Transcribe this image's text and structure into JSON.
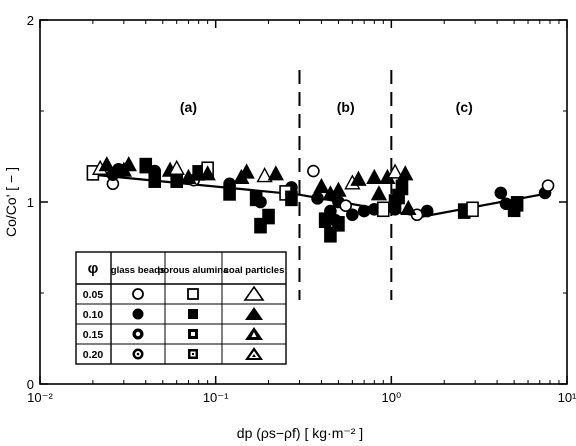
{
  "chart_data": {
    "type": "scatter",
    "xscale": "log",
    "xlim": [
      0.01,
      10
    ],
    "ylim": [
      0,
      2
    ],
    "xlabel": "dp (ρs−ρf)   [ kg·m⁻² ]",
    "ylabel": "Co/Co'  [ − ]",
    "xticks": [
      {
        "value": 0.01,
        "label": "10⁻²"
      },
      {
        "value": 0.1,
        "label": "10⁻¹"
      },
      {
        "value": 1,
        "label": "10⁰"
      },
      {
        "value": 10,
        "label": "10¹"
      }
    ],
    "yticks": [
      {
        "value": 0,
        "label": "0"
      },
      {
        "value": 1,
        "label": "1"
      },
      {
        "value": 2,
        "label": "2"
      }
    ],
    "grid": false,
    "regions": [
      {
        "label": "(a)",
        "x": 0.07
      },
      {
        "label": "(b)",
        "x": 0.55
      },
      {
        "label": "(c)",
        "x": 2.6
      }
    ],
    "boundaries": [
      0.3,
      1.0
    ],
    "trend_line": {
      "x": [
        0.02,
        0.3,
        1.5,
        8
      ],
      "y": [
        1.15,
        1.04,
        0.92,
        1.05
      ]
    },
    "legend": {
      "header": [
        "φ",
        "glass beads",
        "porous alumina",
        "coal particles"
      ],
      "rows": [
        "0.05",
        "0.10",
        "0.15",
        "0.20"
      ]
    },
    "series": [
      {
        "name": "glass beads",
        "marker": "circle",
        "points": [
          [
            0.026,
            1.1
          ],
          [
            0.026,
            1.15
          ],
          [
            0.028,
            1.18
          ],
          [
            0.045,
            1.17
          ],
          [
            0.06,
            1.14
          ],
          [
            0.075,
            1.12
          ],
          [
            0.12,
            1.1
          ],
          [
            0.18,
            1.0
          ],
          [
            0.26,
            1.04
          ],
          [
            0.27,
            1.08
          ],
          [
            0.36,
            1.17
          ],
          [
            0.38,
            1.02
          ],
          [
            0.45,
            0.95
          ],
          [
            0.48,
            0.9
          ],
          [
            0.5,
            1.0
          ],
          [
            0.55,
            0.98
          ],
          [
            0.6,
            0.93
          ],
          [
            0.7,
            0.95
          ],
          [
            0.8,
            0.96
          ],
          [
            1.05,
            0.96
          ],
          [
            1.4,
            0.93
          ],
          [
            1.6,
            0.95
          ],
          [
            4.2,
            1.05
          ],
          [
            4.5,
            0.99
          ],
          [
            7.5,
            1.05
          ],
          [
            7.8,
            1.09
          ]
        ]
      },
      {
        "name": "porous alumina",
        "marker": "square",
        "points": [
          [
            0.02,
            1.16
          ],
          [
            0.04,
            1.2
          ],
          [
            0.045,
            1.12
          ],
          [
            0.06,
            1.12
          ],
          [
            0.08,
            1.16
          ],
          [
            0.09,
            1.18
          ],
          [
            0.12,
            1.05
          ],
          [
            0.17,
            1.02
          ],
          [
            0.18,
            0.87
          ],
          [
            0.2,
            0.92
          ],
          [
            0.25,
            1.05
          ],
          [
            0.27,
            1.02
          ],
          [
            0.42,
            0.9
          ],
          [
            0.45,
            0.82
          ],
          [
            0.5,
            0.88
          ],
          [
            0.9,
            0.96
          ],
          [
            1.05,
            1.0
          ],
          [
            1.1,
            1.03
          ],
          [
            1.15,
            1.08
          ],
          [
            2.6,
            0.95
          ],
          [
            2.9,
            0.96
          ],
          [
            5,
            0.96
          ],
          [
            5.2,
            0.99
          ]
        ]
      },
      {
        "name": "coal particles",
        "marker": "triangle",
        "points": [
          [
            0.022,
            1.18
          ],
          [
            0.024,
            1.2
          ],
          [
            0.03,
            1.17
          ],
          [
            0.032,
            1.2
          ],
          [
            0.055,
            1.17
          ],
          [
            0.06,
            1.18
          ],
          [
            0.07,
            1.13
          ],
          [
            0.09,
            1.15
          ],
          [
            0.14,
            1.13
          ],
          [
            0.15,
            1.16
          ],
          [
            0.19,
            1.14
          ],
          [
            0.22,
            1.15
          ],
          [
            0.4,
            1.08
          ],
          [
            0.45,
            1.04
          ],
          [
            0.5,
            1.06
          ],
          [
            0.6,
            1.1
          ],
          [
            0.65,
            1.12
          ],
          [
            0.8,
            1.13
          ],
          [
            0.85,
            1.04
          ],
          [
            0.95,
            1.13
          ],
          [
            1.05,
            1.16
          ],
          [
            1.2,
            1.15
          ],
          [
            1.25,
            0.96
          ]
        ]
      }
    ]
  }
}
